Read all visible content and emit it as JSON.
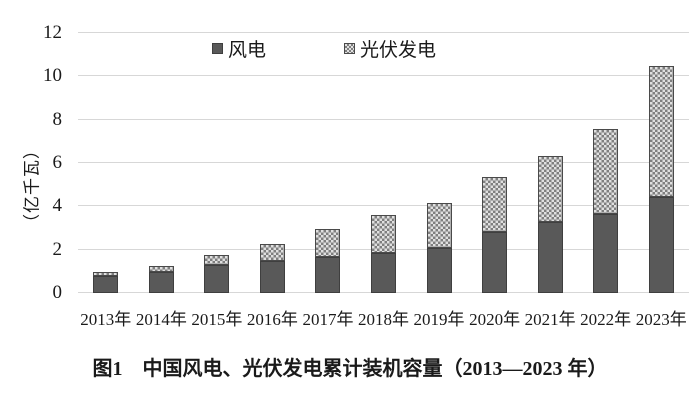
{
  "figure": {
    "caption": "图1　中国风电、光伏发电累计装机容量（2013—2023 年）"
  },
  "chart_data": {
    "type": "bar",
    "stacked": true,
    "title": "图1　中国风电、光伏发电累计装机容量（2013—2023 年）",
    "ylabel": "（亿千瓦）",
    "xlabel": "",
    "categories": [
      "2013年",
      "2014年",
      "2015年",
      "2016年",
      "2017年",
      "2018年",
      "2019年",
      "2020年",
      "2021年",
      "2022年",
      "2023年"
    ],
    "series": [
      {
        "name": "风电",
        "fill": "solid",
        "color": "#595959",
        "values": [
          0.77,
          0.96,
          1.31,
          1.49,
          1.64,
          1.84,
          2.1,
          2.82,
          3.28,
          3.65,
          4.41
        ]
      },
      {
        "name": "光伏发电",
        "fill": "dotted-pattern",
        "color": "#e0e0e0",
        "dot_color": "#7f7f7f",
        "values": [
          0.19,
          0.28,
          0.43,
          0.77,
          1.3,
          1.74,
          2.04,
          2.53,
          3.06,
          3.93,
          6.09
        ]
      }
    ],
    "totals": [
      0.96,
      1.24,
      1.74,
      2.26,
      2.94,
      3.58,
      4.14,
      5.35,
      6.34,
      7.58,
      10.5
    ],
    "ylim": [
      0,
      12
    ],
    "yticks": [
      0,
      2,
      4,
      6,
      8,
      10,
      12
    ],
    "grid": true,
    "gridline_color": "#d7d7d7",
    "legend_position": "top-inside"
  }
}
